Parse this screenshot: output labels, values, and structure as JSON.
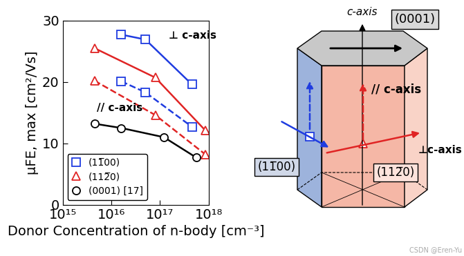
{
  "chart_data": {
    "type": "line",
    "x_label": "Donor Concentration of n-body [cm⁻³]",
    "y_label": "μFE, max [cm²/Vs]",
    "log": "x",
    "xlim": [
      1000000000000000.0,
      1e+18
    ],
    "xticks": [
      {
        "value": 1000000000000000.0,
        "label": "10¹⁵"
      },
      {
        "value": 1e+16,
        "label": "10¹⁶"
      },
      {
        "value": 1e+17,
        "label": "10¹⁷"
      },
      {
        "value": 1e+18,
        "label": "10¹⁸"
      }
    ],
    "ylim": [
      0,
      30
    ],
    "yticks": [
      0,
      10,
      20,
      30
    ],
    "legend": "lower left",
    "annotations": [
      "⊥ c-axis",
      "// c-axis"
    ],
    "series": [
      {
        "name": "(11̅00)",
        "color": "#1f3ce0",
        "marker": "square",
        "line_style": "solid",
        "x": [
          1.6e+16,
          5e+16,
          4.5e+17
        ],
        "values": [
          27.7,
          26.9,
          19.6
        ]
      },
      {
        "name": "(11̅00)",
        "color": "#1f3ce0",
        "marker": "square",
        "line_style": "dashed",
        "x": [
          1.6e+16,
          5e+16,
          4.5e+17
        ],
        "values": [
          20.1,
          18.3,
          12.7
        ]
      },
      {
        "name": "(112̅0)",
        "color": "#e02424",
        "marker": "triangle",
        "line_style": "solid",
        "x": [
          4500000000000000.0,
          8e+16,
          8.5e+17
        ],
        "values": [
          25.5,
          20.7,
          12.1
        ]
      },
      {
        "name": "(112̅0)",
        "color": "#e02424",
        "marker": "triangle",
        "line_style": "dashed",
        "x": [
          4500000000000000.0,
          8e+16,
          8.5e+17
        ],
        "values": [
          20.2,
          14.6,
          8.2
        ]
      },
      {
        "name": "(0001) [17]",
        "color": "#000000",
        "marker": "circle",
        "line_style": "solid",
        "x": [
          4500000000000000.0,
          1.6e+16,
          1.2e+17,
          5.5e+17
        ],
        "values": [
          13.2,
          12.5,
          11.0,
          7.7
        ]
      }
    ]
  },
  "diagram": {
    "c_axis": "c-axis",
    "top_plane": "(0001)",
    "parallel": "// c-axis",
    "perpendicular": "⊥c-axis",
    "plane_m": "(11̅00)",
    "plane_a": "(112̅0)"
  },
  "watermark": "CSDN @Eren-Yu"
}
